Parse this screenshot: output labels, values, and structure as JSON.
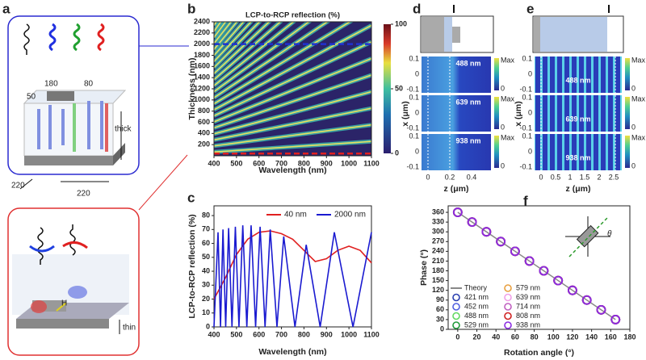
{
  "panel_labels": [
    "a",
    "b",
    "c",
    "d",
    "e",
    "f"
  ],
  "panel_a": {
    "dims": [
      "180",
      "80",
      "50",
      "thick",
      "220",
      "220"
    ],
    "thin": "thin",
    "h": "H"
  },
  "panel_d": {
    "wavelengths": [
      "488 nm",
      "639 nm",
      "938 nm"
    ],
    "xticks": [
      "0.1",
      "0",
      "-0.1"
    ],
    "zticks": [
      "0",
      "0.2",
      "0.4"
    ],
    "xlabel": "x (μm)",
    "zlabel": "z (μm)",
    "max": "Max",
    "min": "0"
  },
  "panel_e": {
    "wavelengths": [
      "488 nm",
      "639 nm",
      "938 nm"
    ],
    "xticks": [
      "0.1",
      "0",
      "-0.1"
    ],
    "zticks": [
      "0",
      "0.5",
      "1",
      "1.5",
      "2",
      "2.5"
    ],
    "xlabel": "x (μm)",
    "zlabel": "z (μm)",
    "max": "Max",
    "min": "0"
  },
  "chart_data": [
    {
      "type": "heatmap",
      "title": "LCP-to-RCP reflection (%)",
      "xlabel": "Wavelength (nm)",
      "ylabel": "Thickness (nm)",
      "xlim": [
        400,
        1100
      ],
      "xticks": [
        400,
        500,
        600,
        700,
        800,
        900,
        1000,
        1100
      ],
      "ylim": [
        0,
        2400
      ],
      "yticks": [
        200,
        400,
        600,
        800,
        1000,
        1200,
        1400,
        1600,
        1800,
        2000,
        2200,
        2400
      ],
      "colorbar_ticks": [
        0,
        50,
        100
      ],
      "markers": [
        {
          "value": 2000,
          "color": "#2030d0"
        },
        {
          "value": 40,
          "color": "#e02020"
        }
      ]
    },
    {
      "type": "line",
      "xlabel": "Wavelength (nm)",
      "ylabel": "LCP-to-RCP reflection (%)",
      "xlim": [
        400,
        1100
      ],
      "xticks": [
        400,
        500,
        600,
        700,
        800,
        900,
        1000,
        1100
      ],
      "ylim": [
        0,
        87
      ],
      "yticks": [
        0,
        10,
        20,
        30,
        40,
        50,
        60,
        70,
        80
      ],
      "series": [
        {
          "name": "40 nm",
          "color": "#e02020",
          "x": [
            400,
            450,
            500,
            550,
            600,
            650,
            700,
            750,
            800,
            850,
            900,
            950,
            1000,
            1050,
            1100
          ],
          "values": [
            20,
            35,
            52,
            63,
            68,
            69,
            67,
            63,
            55,
            47,
            49,
            55,
            58,
            55,
            46
          ]
        },
        {
          "name": "2000 nm",
          "color": "#1a1ad0",
          "x": [
            400,
            418,
            429,
            440,
            452,
            465,
            480,
            495,
            511,
            528,
            546,
            565,
            585,
            605,
            627,
            650,
            680,
            710,
            760,
            810,
            872,
            935,
            1018,
            1100
          ],
          "values": [
            0,
            68,
            0,
            70,
            0,
            71,
            0,
            72,
            0,
            73,
            0,
            73,
            0,
            72,
            0,
            70,
            0,
            65,
            0,
            59,
            0,
            68,
            0,
            68
          ]
        }
      ]
    },
    {
      "type": "scatter",
      "xlabel": "Rotation angle (°)",
      "ylabel": "Phase (°)",
      "inset_label": "θ",
      "xlim": [
        -10,
        180
      ],
      "xticks": [
        0,
        20,
        40,
        60,
        80,
        100,
        120,
        140,
        160,
        180
      ],
      "ylim": [
        0,
        380
      ],
      "yticks": [
        0,
        30,
        60,
        90,
        120,
        150,
        180,
        210,
        240,
        270,
        300,
        330,
        360
      ],
      "theory": {
        "name": "Theory",
        "color": "#888888",
        "x": [
          0,
          165
        ],
        "values": [
          360,
          30
        ]
      },
      "x": [
        0,
        15,
        30,
        45,
        60,
        75,
        90,
        105,
        120,
        135,
        150,
        165
      ],
      "series": [
        {
          "name": "421 nm",
          "color": "#2a3fb0",
          "values": [
            360,
            330,
            300,
            270,
            240,
            210,
            180,
            150,
            120,
            90,
            60,
            30
          ]
        },
        {
          "name": "452 nm",
          "color": "#5060e0",
          "values": [
            360,
            330,
            300,
            270,
            240,
            210,
            180,
            150,
            120,
            90,
            60,
            30
          ]
        },
        {
          "name": "488 nm",
          "color": "#60d860",
          "values": [
            360,
            330,
            300,
            270,
            240,
            210,
            180,
            150,
            120,
            90,
            60,
            30
          ]
        },
        {
          "name": "529 nm",
          "color": "#1f9a3a",
          "values": [
            360,
            330,
            300,
            270,
            240,
            210,
            180,
            150,
            120,
            90,
            60,
            30
          ]
        },
        {
          "name": "579 nm",
          "color": "#e8a040",
          "values": [
            360,
            330,
            300,
            270,
            240,
            210,
            180,
            150,
            120,
            90,
            60,
            30
          ]
        },
        {
          "name": "639 nm",
          "color": "#f0a0e8",
          "values": [
            360,
            330,
            300,
            270,
            240,
            210,
            180,
            150,
            120,
            90,
            60,
            30
          ]
        },
        {
          "name": "714 nm",
          "color": "#c060c0",
          "values": [
            360,
            330,
            300,
            270,
            240,
            210,
            180,
            150,
            120,
            90,
            60,
            30
          ]
        },
        {
          "name": "808 nm",
          "color": "#d02020",
          "values": [
            360,
            330,
            300,
            270,
            240,
            210,
            180,
            150,
            120,
            90,
            60,
            30
          ]
        },
        {
          "name": "938 nm",
          "color": "#8a2be2",
          "values": [
            360,
            330,
            300,
            270,
            240,
            210,
            180,
            150,
            120,
            90,
            60,
            30
          ]
        }
      ]
    }
  ]
}
